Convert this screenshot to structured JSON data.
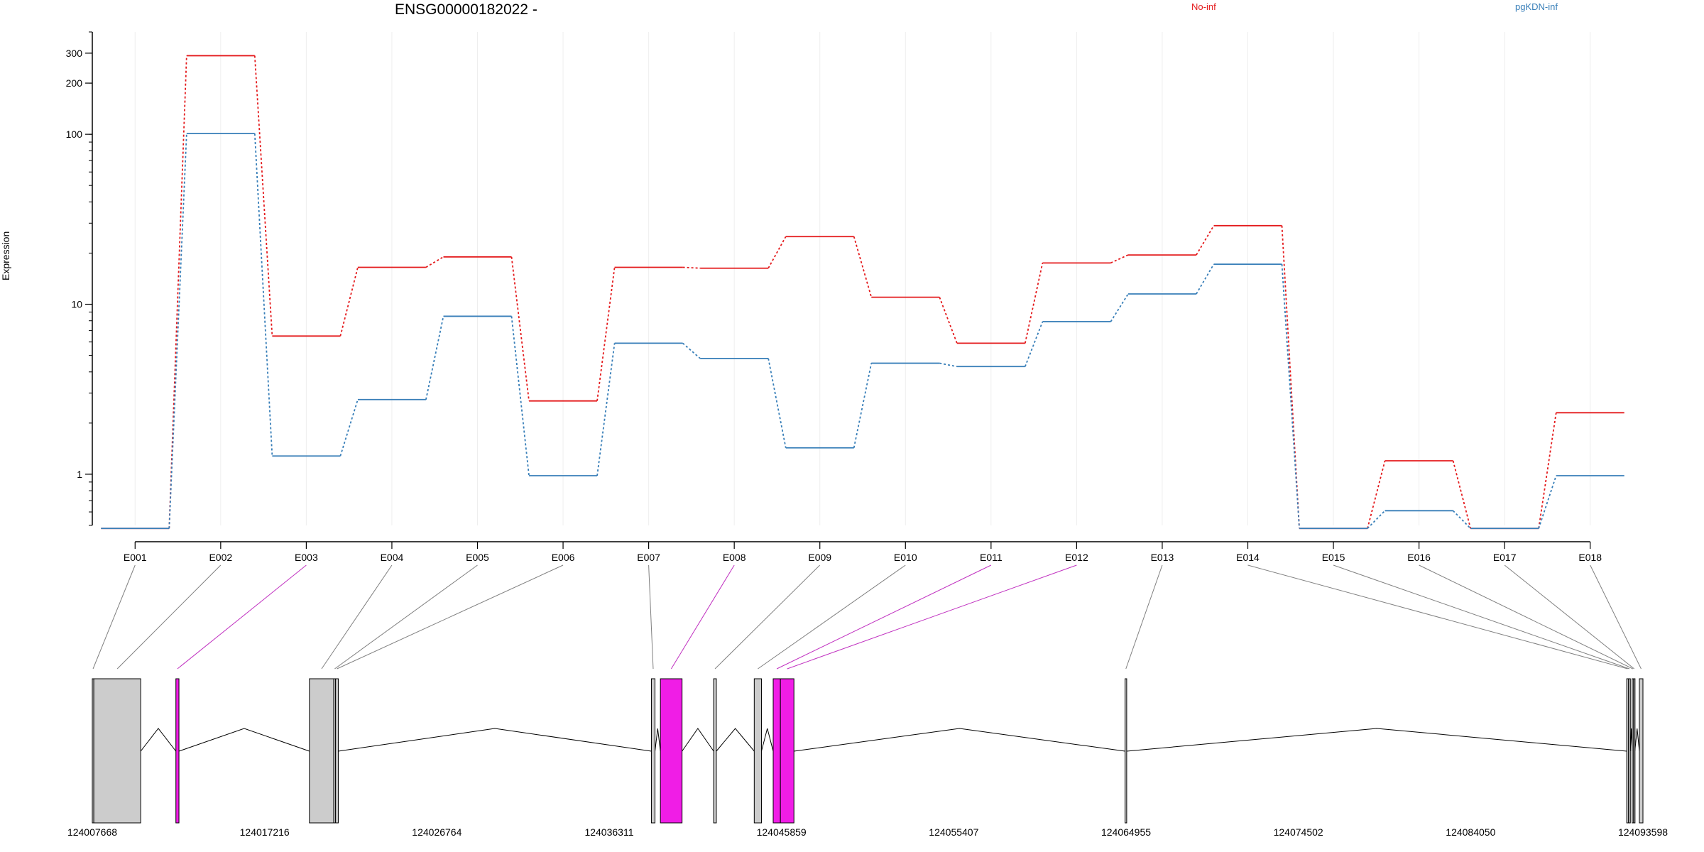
{
  "chart_data": {
    "type": "line",
    "title": "ENSG00000182022 -",
    "ylabel": "Expression",
    "yscale": "log",
    "ylim": [
      0.5,
      400
    ],
    "yticks": [
      "1",
      "10",
      "100",
      "200",
      "300"
    ],
    "categories": [
      "E001",
      "E002",
      "E003",
      "E004",
      "E005",
      "E006",
      "E007",
      "E008",
      "E009",
      "E010",
      "E011",
      "E012",
      "E013",
      "E014",
      "E015",
      "E016",
      "E017",
      "E018"
    ],
    "series": [
      {
        "name": "No-inf",
        "color": "#e41a1c",
        "values": [
          0.48,
          290,
          6.5,
          16.5,
          19,
          2.7,
          16.5,
          16.3,
          25,
          11,
          5.9,
          17.5,
          19.5,
          29,
          0.48,
          1.2,
          0.48,
          2.3
        ]
      },
      {
        "name": "pgKDN-inf",
        "color": "#377eb8",
        "values": [
          0.48,
          101,
          1.28,
          2.75,
          8.5,
          0.98,
          5.9,
          4.8,
          1.43,
          4.5,
          4.3,
          7.9,
          11.5,
          17.2,
          0.48,
          0.61,
          0.48,
          0.98
        ]
      }
    ],
    "gene_model": {
      "coordinate_ticks": [
        "124007668",
        "124017216",
        "124026764",
        "124036311",
        "124045859",
        "124055407",
        "124064955",
        "124074502",
        "124084050",
        "124093598"
      ],
      "exons": [
        {
          "id": "E001",
          "start": 124007668,
          "end": 124007750,
          "highlight": false
        },
        {
          "id": "E002",
          "start": 124007750,
          "end": 124010350,
          "highlight": false
        },
        {
          "id": "E003",
          "start": 124012300,
          "end": 124012470,
          "highlight": true
        },
        {
          "id": "E004",
          "start": 124019700,
          "end": 124021050,
          "highlight": false
        },
        {
          "id": "E005",
          "start": 124021050,
          "end": 124021150,
          "highlight": false
        },
        {
          "id": "E006",
          "start": 124021150,
          "end": 124021300,
          "highlight": false
        },
        {
          "id": "E007",
          "start": 124038650,
          "end": 124038850,
          "highlight": false
        },
        {
          "id": "E008",
          "start": 124039150,
          "end": 124040350,
          "highlight": true
        },
        {
          "id": "E009",
          "start": 124042100,
          "end": 124042250,
          "highlight": false
        },
        {
          "id": "E010",
          "start": 124044350,
          "end": 124044750,
          "highlight": false
        },
        {
          "id": "E011",
          "start": 124045400,
          "end": 124045800,
          "highlight": true
        },
        {
          "id": "E012",
          "start": 124045800,
          "end": 124046550,
          "highlight": true
        },
        {
          "id": "E013",
          "start": 124064900,
          "end": 124064990,
          "highlight": false
        },
        {
          "id": "E014",
          "start": 124092700,
          "end": 124092800,
          "highlight": false
        },
        {
          "id": "E015",
          "start": 124092800,
          "end": 124092900,
          "highlight": false
        },
        {
          "id": "E016",
          "start": 124093000,
          "end": 124093080,
          "highlight": false
        },
        {
          "id": "E017",
          "start": 124093080,
          "end": 124093150,
          "highlight": false
        },
        {
          "id": "E018",
          "start": 124093400,
          "end": 124093598,
          "highlight": false
        }
      ],
      "exon_color": "#cccccc",
      "highlight_color": "#f01de6"
    }
  }
}
